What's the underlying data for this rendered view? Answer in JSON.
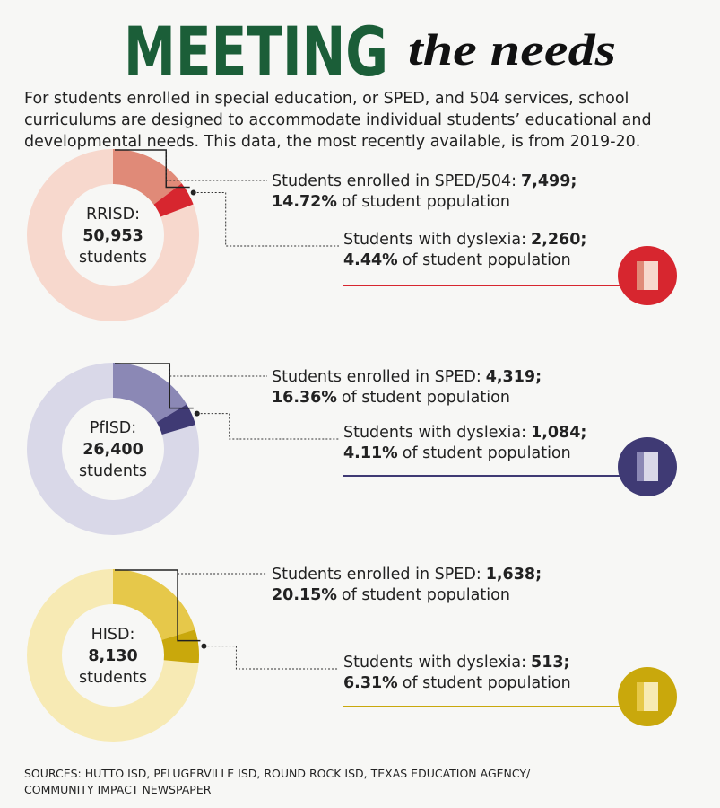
{
  "title": "MEETING",
  "subtitle": "the needs",
  "intro": "For students enrolled in special education, or SPED, and 504 services, school curriculums are designed to accommodate individual students’ educational and developmental needs. This data, the most recently available, is from 2019-20.",
  "sources": "SOURCES: HUTTO ISD, PFLUGERVILLE ISD, ROUND ROCK ISD, TEXAS EDUCATION AGENCY/ COMMUNITY IMPACT NEWSPAPER",
  "chart_data": [
    {
      "type": "donut",
      "name": "RRISD:",
      "total": 50953,
      "total_label": "50,953",
      "unit": "students",
      "categories": [
        "Students enrolled in SPED/504:",
        "Students with dyslexia:"
      ],
      "counts": [
        7499,
        2260
      ],
      "count_labels": [
        "7,499;",
        "2,260;"
      ],
      "values": [
        14.72,
        4.44
      ],
      "value_labels": [
        "14.72%",
        "4.44%"
      ],
      "suffix": "of student population",
      "colors": [
        "#e08a78",
        "#d7262f"
      ],
      "ring_color": "#f7d8cd"
    },
    {
      "type": "donut",
      "name": "PfISD:",
      "total": 26400,
      "total_label": "26,400",
      "unit": "students",
      "categories": [
        "Students enrolled in SPED:",
        "Students with dyslexia:"
      ],
      "counts": [
        4319,
        1084
      ],
      "count_labels": [
        "4,319;",
        "1,084;"
      ],
      "values": [
        16.36,
        4.11
      ],
      "value_labels": [
        "16.36%",
        "4.11%"
      ],
      "suffix": "of student population",
      "colors": [
        "#8b88b5",
        "#3f3a74"
      ],
      "ring_color": "#d9d8e8"
    },
    {
      "type": "donut",
      "name": "HISD:",
      "total": 8130,
      "total_label": "8,130",
      "unit": "students",
      "categories": [
        "Students enrolled in SPED:",
        "Students with dyslexia:"
      ],
      "counts": [
        1638,
        513
      ],
      "count_labels": [
        "1,638;",
        "513;"
      ],
      "values": [
        20.15,
        6.31
      ],
      "value_labels": [
        "20.15%",
        "6.31%"
      ],
      "suffix": "of student population",
      "colors": [
        "#e6c84a",
        "#c9a80c"
      ],
      "ring_color": "#f7eab4"
    }
  ]
}
